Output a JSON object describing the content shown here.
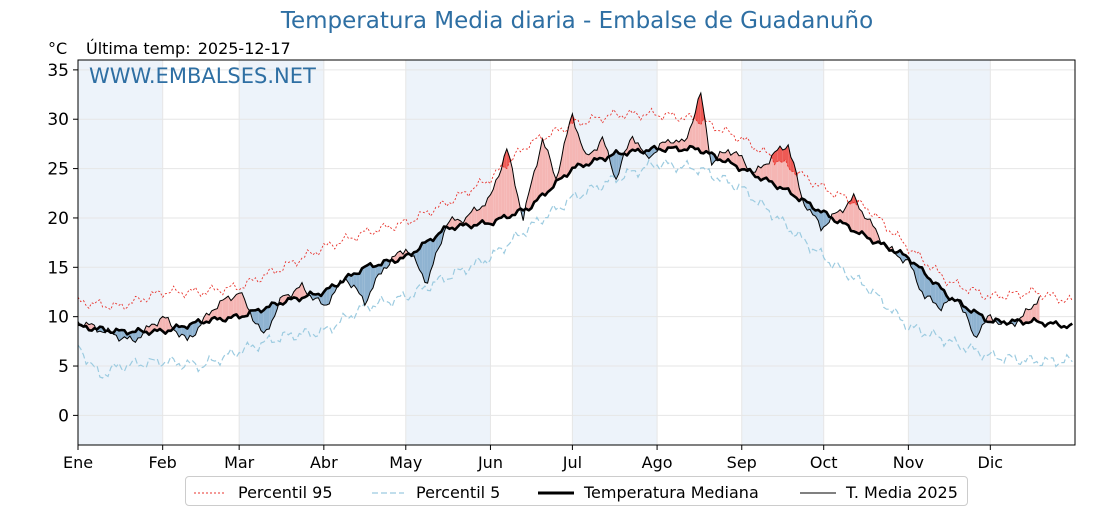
{
  "title": "Temperatura Media diaria - Embalse de Guadanuño",
  "unit_label": "°C",
  "last_temp": {
    "label": "Última temp:",
    "date": "2025-12-17"
  },
  "watermark": "WWW.EMBALSES.NET",
  "colors": {
    "title": "#2e6fa3",
    "p95": "#e8332c",
    "p5": "#9ccbe0",
    "median": "#000000",
    "current": "#000000",
    "above_fill": "#f5b6b4",
    "above_p95_fill": "#ee5a55",
    "below_fill": "#8fb3d1",
    "month_band": "#edf3fa",
    "grid": "#e6e6e6"
  },
  "legend": [
    {
      "key": "p95",
      "label": "Percentil 95"
    },
    {
      "key": "p5",
      "label": "Percentil 5"
    },
    {
      "key": "median",
      "label": "Temperatura Mediana"
    },
    {
      "key": "current",
      "label": "T. Media 2025"
    }
  ],
  "chart_data": {
    "type": "line",
    "title": "Temperatura Media diaria - Embalse de Guadanuño",
    "ylabel": "°C",
    "ylim": [
      -3,
      36
    ],
    "yticks": [
      0,
      5,
      10,
      15,
      20,
      25,
      30,
      35
    ],
    "xlim": [
      0,
      365
    ],
    "month_starts": [
      0,
      31,
      59,
      90,
      120,
      151,
      181,
      212,
      243,
      273,
      304,
      334
    ],
    "month_labels": [
      "Ene",
      "Feb",
      "Mar",
      "Abr",
      "May",
      "Jun",
      "Jul",
      "Ago",
      "Sep",
      "Oct",
      "Nov",
      "Dic"
    ],
    "series": [
      {
        "name": "Percentil 95",
        "style": "dotted-red",
        "x": [
          0,
          15,
          31,
          45,
          59,
          75,
          90,
          105,
          120,
          135,
          151,
          165,
          181,
          197,
          212,
          227,
          243,
          258,
          273,
          289,
          304,
          319,
          334,
          350,
          364
        ],
        "values": [
          11.5,
          11,
          12.5,
          12.5,
          13,
          15,
          17,
          18.5,
          19.5,
          21.5,
          24,
          27.5,
          29.5,
          30.5,
          30.5,
          30,
          28,
          25.5,
          23,
          21,
          17,
          13.5,
          12,
          12.5,
          11.5
        ]
      },
      {
        "name": "Percentil 5",
        "style": "dashed-lightblue",
        "x": [
          0,
          8,
          15,
          31,
          45,
          59,
          75,
          90,
          105,
          120,
          135,
          151,
          165,
          181,
          197,
          212,
          227,
          243,
          258,
          273,
          289,
          304,
          319,
          334,
          350,
          364
        ],
        "values": [
          7,
          4,
          5,
          5.5,
          5,
          6.5,
          8,
          8.5,
          11,
          12,
          14,
          16,
          19,
          22,
          24,
          25.5,
          25,
          23,
          19.5,
          16,
          13,
          9,
          7.5,
          6,
          5.5,
          5.5
        ]
      },
      {
        "name": "Temperatura Mediana",
        "style": "thick-black",
        "x": [
          0,
          15,
          31,
          45,
          59,
          75,
          90,
          105,
          120,
          135,
          151,
          165,
          181,
          197,
          212,
          227,
          243,
          258,
          273,
          289,
          304,
          319,
          334,
          350,
          364
        ],
        "values": [
          9,
          8.5,
          8.5,
          9.5,
          10,
          11.5,
          12.5,
          15,
          16,
          19,
          19.5,
          21,
          25,
          26.5,
          27,
          27,
          25,
          23,
          20.5,
          18,
          16,
          12,
          9.5,
          9.5,
          9
        ]
      },
      {
        "name": "T. Media 2025",
        "style": "thin-black",
        "x": [
          0,
          10,
          20,
          31,
          40,
          50,
          59,
          68,
          75,
          82,
          90,
          98,
          105,
          112,
          120,
          128,
          135,
          142,
          151,
          157,
          163,
          170,
          175,
          181,
          186,
          192,
          197,
          203,
          208,
          212,
          217,
          222,
          228,
          232,
          238,
          243,
          248,
          255,
          260,
          265,
          272,
          278,
          284,
          290,
          296,
          304,
          310,
          316,
          322,
          328,
          334,
          340,
          346,
          352
        ],
        "values": [
          9.5,
          8.5,
          7.5,
          10,
          7.5,
          11,
          12.5,
          8,
          12,
          13,
          11,
          14,
          11.5,
          15,
          17,
          13.5,
          19.5,
          20,
          22,
          27,
          20,
          28,
          24,
          30.5,
          26,
          28,
          24,
          28.5,
          26,
          27,
          28,
          27.5,
          32.5,
          25.5,
          27,
          26,
          24.5,
          26.5,
          27.5,
          22,
          19,
          20.5,
          22,
          19.5,
          17,
          15.5,
          12,
          11,
          12,
          8,
          10,
          9,
          10,
          12
        ]
      }
    ]
  }
}
